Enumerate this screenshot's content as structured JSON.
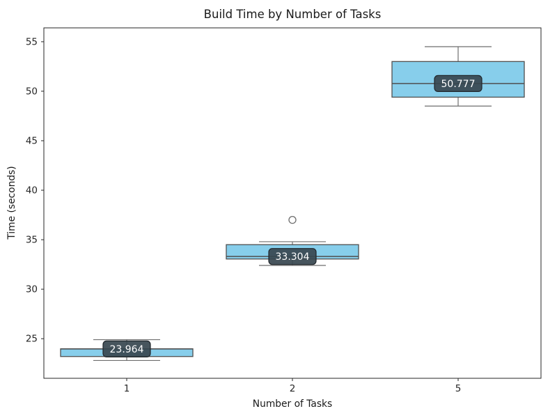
{
  "window": {
    "background_color": "#ffffff"
  },
  "chart_data": {
    "type": "box",
    "title": "Build Time by Number of Tasks",
    "xlabel": "Number of Tasks",
    "ylabel": "Time (seconds)",
    "categories": [
      "1",
      "2",
      "5"
    ],
    "yticks": [
      25,
      30,
      35,
      40,
      45,
      50,
      55
    ],
    "ylim": [
      21.0,
      56.4
    ],
    "grid": false,
    "legend": false,
    "boxes": [
      {
        "category": "1",
        "whislo": 22.8,
        "q1": 23.2,
        "med": 23.964,
        "q3": 23.98,
        "whishi": 24.9,
        "fliers": [],
        "median_label": "23.964"
      },
      {
        "category": "2",
        "whislo": 32.4,
        "q1": 33.05,
        "med": 33.304,
        "q3": 34.5,
        "whishi": 34.8,
        "fliers": [
          37.0
        ],
        "median_label": "33.304"
      },
      {
        "category": "5",
        "whislo": 48.5,
        "q1": 49.4,
        "med": 50.777,
        "q3": 53.0,
        "whishi": 54.5,
        "fliers": [],
        "median_label": "50.777"
      }
    ],
    "colors": {
      "box_fill": "#87CEEB",
      "box_edge": "#4f4f4f",
      "whisker": "#6e6e6e",
      "median": "#4f4f4f",
      "flier_edge": "#6e6e6e",
      "badge_fill": "#37474f",
      "badge_border": "#20262b",
      "badge_text": "#ffffff",
      "frame": "#262626",
      "tick_text": "#262626"
    }
  }
}
